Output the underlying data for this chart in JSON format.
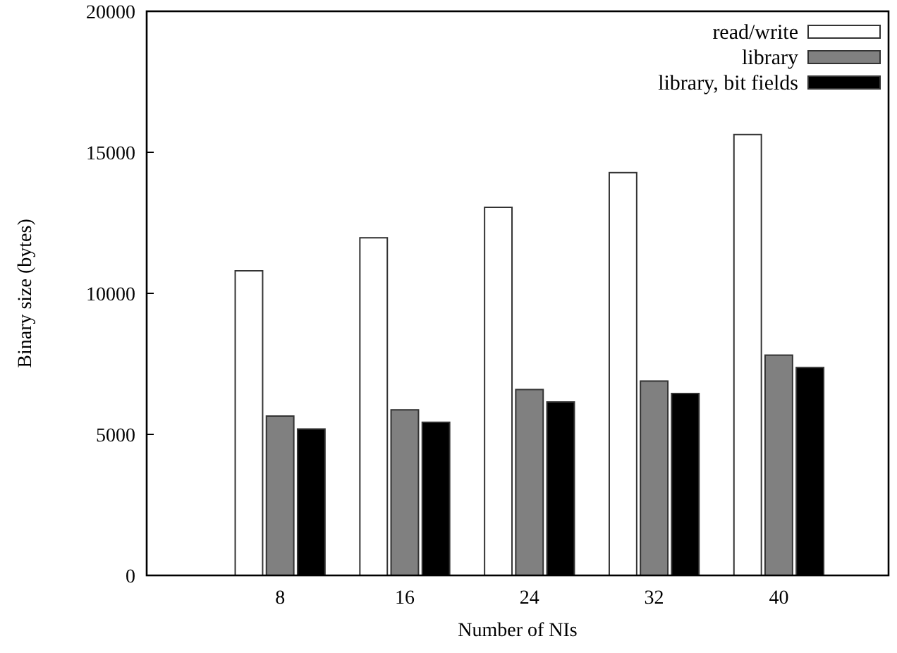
{
  "chart_data": {
    "type": "bar",
    "xlabel": "Number of NIs",
    "ylabel": "Binary size (bytes)",
    "categories": [
      "8",
      "16",
      "24",
      "32",
      "40"
    ],
    "series": [
      {
        "name": "read/write",
        "color": "#ffffff",
        "values": [
          10800,
          11970,
          13050,
          14280,
          15630
        ]
      },
      {
        "name": "library",
        "color": "#808080",
        "values": [
          5650,
          5870,
          6590,
          6890,
          7810
        ]
      },
      {
        "name": "library, bit fields",
        "color": "#000000",
        "values": [
          5190,
          5430,
          6150,
          6450,
          7370
        ]
      }
    ],
    "ylim": [
      0,
      20000
    ],
    "yticks": [
      0,
      5000,
      10000,
      15000,
      20000
    ],
    "grid": false,
    "legend": "top right"
  }
}
